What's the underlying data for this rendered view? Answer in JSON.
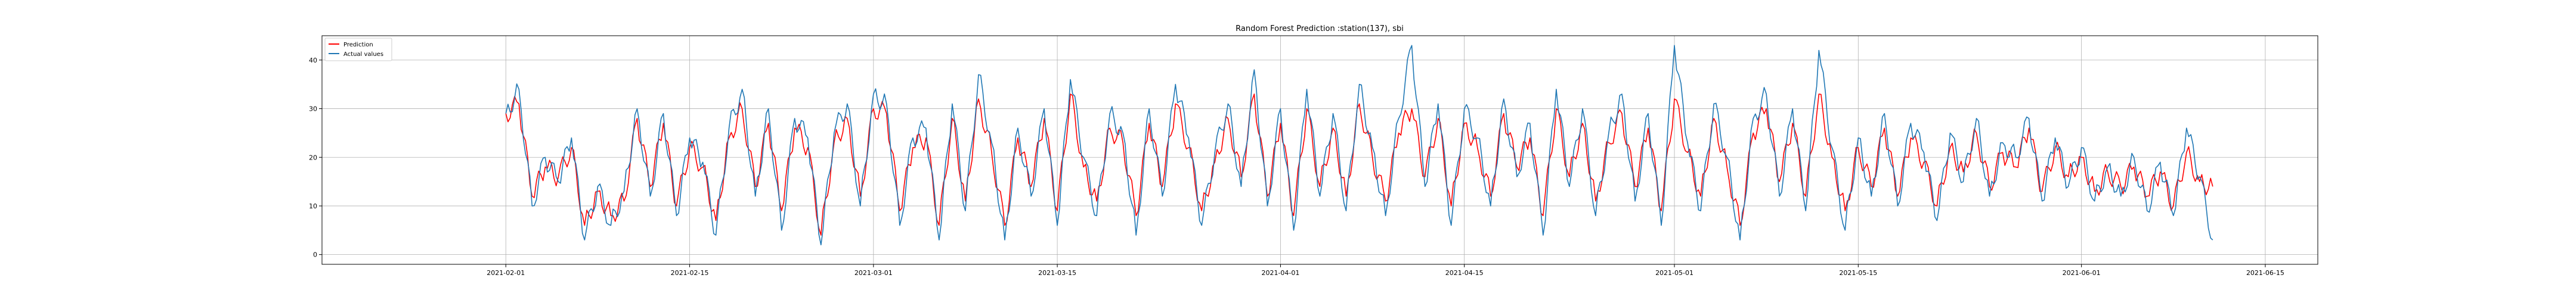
{
  "chart_data": {
    "type": "line",
    "title": "Random Forest Prediction :station(137), sbi",
    "xlabel": "",
    "ylabel": "",
    "xlim": [
      "2021-01-18",
      "2021-06-19"
    ],
    "ylim": [
      -2,
      45
    ],
    "grid": true,
    "legend_position": "upper-left",
    "x_tick_labels": [
      "2021-02-01",
      "2021-02-15",
      "2021-03-01",
      "2021-03-15",
      "2021-04-01",
      "2021-04-15",
      "2021-05-01",
      "2021-05-15",
      "2021-06-01",
      "2021-06-15"
    ],
    "y_tick_labels": [
      "0",
      "10",
      "20",
      "30",
      "40"
    ],
    "y_ticks": [
      0,
      10,
      20,
      30,
      40
    ],
    "x_range": [
      "2021-02-01",
      "2021-06-11"
    ],
    "series": [
      {
        "name": "Prediction",
        "color": "#ff0000",
        "x": [
          "2021-02-01",
          "2021-02-02",
          "2021-02-03",
          "2021-02-04",
          "2021-02-05",
          "2021-02-06",
          "2021-02-07",
          "2021-02-08",
          "2021-02-09",
          "2021-02-10",
          "2021-02-11",
          "2021-02-12",
          "2021-02-13",
          "2021-02-14",
          "2021-02-15",
          "2021-02-16",
          "2021-02-17",
          "2021-02-18",
          "2021-02-19",
          "2021-02-20",
          "2021-02-21",
          "2021-02-22",
          "2021-02-23",
          "2021-02-24",
          "2021-02-25",
          "2021-02-26",
          "2021-02-27",
          "2021-02-28",
          "2021-03-01",
          "2021-03-02",
          "2021-03-03",
          "2021-03-04",
          "2021-03-05",
          "2021-03-06",
          "2021-03-07",
          "2021-03-08",
          "2021-03-09",
          "2021-03-10",
          "2021-03-11",
          "2021-03-12",
          "2021-03-13",
          "2021-03-14",
          "2021-03-15",
          "2021-03-16",
          "2021-03-17",
          "2021-03-18",
          "2021-03-19",
          "2021-03-20",
          "2021-03-21",
          "2021-03-22",
          "2021-03-23",
          "2021-03-24",
          "2021-03-25",
          "2021-03-26",
          "2021-03-27",
          "2021-03-28",
          "2021-03-29",
          "2021-03-30",
          "2021-03-31",
          "2021-04-01",
          "2021-04-02",
          "2021-04-03",
          "2021-04-04",
          "2021-04-05",
          "2021-04-06",
          "2021-04-07",
          "2021-04-08",
          "2021-04-09",
          "2021-04-10",
          "2021-04-11",
          "2021-04-12",
          "2021-04-13",
          "2021-04-14",
          "2021-04-15",
          "2021-04-16",
          "2021-04-17",
          "2021-04-18",
          "2021-04-19",
          "2021-04-20",
          "2021-04-21",
          "2021-04-22",
          "2021-04-23",
          "2021-04-24",
          "2021-04-25",
          "2021-04-26",
          "2021-04-27",
          "2021-04-28",
          "2021-04-29",
          "2021-04-30",
          "2021-05-01",
          "2021-05-02",
          "2021-05-03",
          "2021-05-04",
          "2021-05-05",
          "2021-05-06",
          "2021-05-07",
          "2021-05-08",
          "2021-05-09",
          "2021-05-10",
          "2021-05-11",
          "2021-05-12",
          "2021-05-13",
          "2021-05-14",
          "2021-05-15",
          "2021-05-16",
          "2021-05-17",
          "2021-05-18",
          "2021-05-19",
          "2021-05-20",
          "2021-05-21",
          "2021-05-22",
          "2021-05-23",
          "2021-05-24",
          "2021-05-25",
          "2021-05-26",
          "2021-05-27",
          "2021-05-28",
          "2021-05-29",
          "2021-05-30",
          "2021-05-31",
          "2021-06-01",
          "2021-06-02",
          "2021-06-03",
          "2021-06-04",
          "2021-06-05",
          "2021-06-06",
          "2021-06-07",
          "2021-06-08",
          "2021-06-09",
          "2021-06-10",
          "2021-06-11"
        ],
        "values": [
          29,
          31,
          12,
          18,
          16,
          22,
          6,
          13,
          8,
          11,
          28,
          14,
          27,
          10,
          22,
          18,
          7,
          24,
          30,
          14,
          27,
          9,
          26,
          22,
          4,
          23,
          28,
          12,
          30,
          29,
          9,
          22,
          24,
          6,
          28,
          11,
          32,
          21,
          6,
          24,
          14,
          28,
          9,
          33,
          18,
          11,
          26,
          23,
          8,
          27,
          14,
          31,
          22,
          9,
          19,
          28,
          16,
          33,
          12,
          27,
          8,
          30,
          14,
          26,
          12,
          31,
          20,
          11,
          25,
          30,
          16,
          28,
          10,
          27,
          22,
          12,
          29,
          18,
          24,
          8,
          30,
          16,
          27,
          11,
          23,
          29,
          14,
          26,
          9,
          32,
          21,
          12,
          28,
          18,
          6,
          25,
          30,
          15,
          27,
          12,
          33,
          20,
          9,
          22,
          14,
          26,
          12,
          24,
          19,
          10,
          22,
          17,
          25,
          14,
          21,
          18,
          26,
          13,
          22,
          16,
          20,
          13,
          17,
          14,
          18,
          12,
          17,
          10,
          21,
          15,
          14
        ]
      },
      {
        "name": "Actual values",
        "color": "#1f77b4",
        "x": [
          "2021-02-01",
          "2021-02-02",
          "2021-02-03",
          "2021-02-04",
          "2021-02-05",
          "2021-02-06",
          "2021-02-07",
          "2021-02-08",
          "2021-02-09",
          "2021-02-10",
          "2021-02-11",
          "2021-02-12",
          "2021-02-13",
          "2021-02-14",
          "2021-02-15",
          "2021-02-16",
          "2021-02-17",
          "2021-02-18",
          "2021-02-19",
          "2021-02-20",
          "2021-02-21",
          "2021-02-22",
          "2021-02-23",
          "2021-02-24",
          "2021-02-25",
          "2021-02-26",
          "2021-02-27",
          "2021-02-28",
          "2021-03-01",
          "2021-03-02",
          "2021-03-03",
          "2021-03-04",
          "2021-03-05",
          "2021-03-06",
          "2021-03-07",
          "2021-03-08",
          "2021-03-09",
          "2021-03-10",
          "2021-03-11",
          "2021-03-12",
          "2021-03-13",
          "2021-03-14",
          "2021-03-15",
          "2021-03-16",
          "2021-03-17",
          "2021-03-18",
          "2021-03-19",
          "2021-03-20",
          "2021-03-21",
          "2021-03-22",
          "2021-03-23",
          "2021-03-24",
          "2021-03-25",
          "2021-03-26",
          "2021-03-27",
          "2021-03-28",
          "2021-03-29",
          "2021-03-30",
          "2021-03-31",
          "2021-04-01",
          "2021-04-02",
          "2021-04-03",
          "2021-04-04",
          "2021-04-05",
          "2021-04-06",
          "2021-04-07",
          "2021-04-08",
          "2021-04-09",
          "2021-04-10",
          "2021-04-11",
          "2021-04-12",
          "2021-04-13",
          "2021-04-14",
          "2021-04-15",
          "2021-04-16",
          "2021-04-17",
          "2021-04-18",
          "2021-04-19",
          "2021-04-20",
          "2021-04-21",
          "2021-04-22",
          "2021-04-23",
          "2021-04-24",
          "2021-04-25",
          "2021-04-26",
          "2021-04-27",
          "2021-04-28",
          "2021-04-29",
          "2021-04-30",
          "2021-05-01",
          "2021-05-02",
          "2021-05-03",
          "2021-05-04",
          "2021-05-05",
          "2021-05-06",
          "2021-05-07",
          "2021-05-08",
          "2021-05-09",
          "2021-05-10",
          "2021-05-11",
          "2021-05-12",
          "2021-05-13",
          "2021-05-14",
          "2021-05-15",
          "2021-05-16",
          "2021-05-17",
          "2021-05-18",
          "2021-05-19",
          "2021-05-20",
          "2021-05-21",
          "2021-05-22",
          "2021-05-23",
          "2021-05-24",
          "2021-05-25",
          "2021-05-26",
          "2021-05-27",
          "2021-05-28",
          "2021-05-29",
          "2021-05-30",
          "2021-05-31",
          "2021-06-01",
          "2021-06-02",
          "2021-06-03",
          "2021-06-04",
          "2021-06-05",
          "2021-06-06",
          "2021-06-07",
          "2021-06-08",
          "2021-06-09",
          "2021-06-10",
          "2021-06-11"
        ],
        "values": [
          29,
          34,
          10,
          20,
          15,
          24,
          3,
          14,
          6,
          13,
          30,
          12,
          29,
          8,
          24,
          19,
          4,
          26,
          34,
          12,
          30,
          5,
          28,
          24,
          2,
          25,
          31,
          10,
          33,
          31,
          6,
          24,
          26,
          3,
          31,
          9,
          37,
          23,
          3,
          26,
          12,
          30,
          6,
          36,
          20,
          8,
          29,
          25,
          4,
          30,
          12,
          35,
          24,
          6,
          21,
          31,
          14,
          38,
          10,
          30,
          5,
          34,
          12,
          29,
          9,
          35,
          22,
          8,
          28,
          43,
          14,
          31,
          6,
          30,
          24,
          10,
          32,
          16,
          27,
          4,
          34,
          14,
          30,
          8,
          25,
          33,
          11,
          29,
          6,
          43,
          23,
          9,
          31,
          20,
          3,
          28,
          33,
          12,
          30,
          9,
          42,
          22,
          5,
          24,
          12,
          29,
          10,
          27,
          21,
          7,
          25,
          15,
          28,
          12,
          23,
          20,
          28,
          11,
          24,
          14,
          22,
          11,
          18,
          12,
          20,
          9,
          19,
          8,
          26,
          16,
          3
        ]
      }
    ]
  }
}
